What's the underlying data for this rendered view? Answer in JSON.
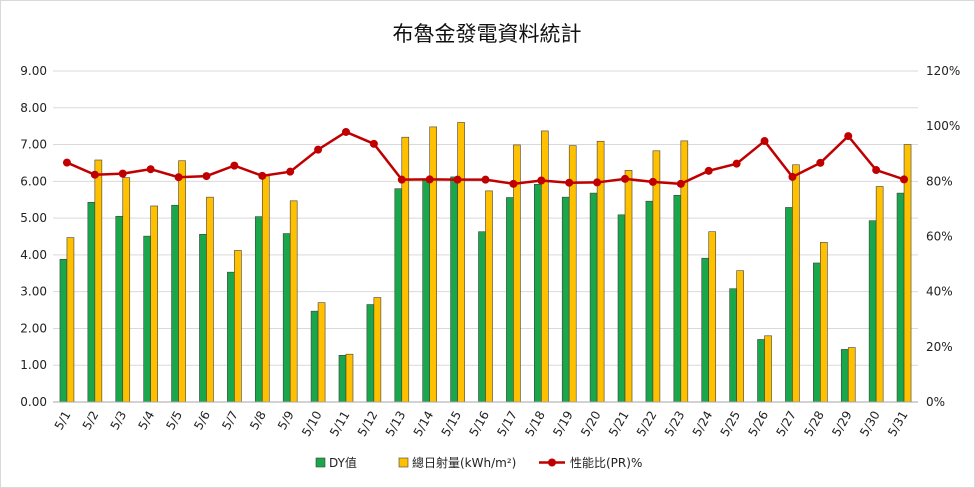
{
  "chart_data": {
    "type": "bar",
    "title": "布魯金發電資料統計",
    "categories": [
      "5/1",
      "5/2",
      "5/3",
      "5/4",
      "5/5",
      "5/6",
      "5/7",
      "5/8",
      "5/9",
      "5/10",
      "5/11",
      "5/12",
      "5/13",
      "5/14",
      "5/15",
      "5/16",
      "5/17",
      "5/18",
      "5/19",
      "5/20",
      "5/21",
      "5/22",
      "5/23",
      "5/24",
      "5/25",
      "5/26",
      "5/27",
      "5/28",
      "5/29",
      "5/30",
      "5/31"
    ],
    "y_ticks": [
      "0.00",
      "1.00",
      "2.00",
      "3.00",
      "4.00",
      "5.00",
      "6.00",
      "7.00",
      "8.00",
      "9.00"
    ],
    "y2_ticks": [
      "0%",
      "20%",
      "40%",
      "60%",
      "80%",
      "100%",
      "120%"
    ],
    "ylim": [
      0,
      9
    ],
    "y2lim": [
      0,
      120
    ],
    "grid": true,
    "legend_position": "bottom",
    "series": [
      {
        "name": "DY值",
        "type": "bar",
        "axis": "left",
        "color": "#1aa64a",
        "values": [
          3.88,
          5.43,
          5.05,
          4.51,
          5.35,
          4.56,
          3.53,
          5.04,
          4.58,
          2.47,
          1.27,
          2.65,
          5.8,
          6.05,
          6.12,
          4.63,
          5.56,
          5.92,
          5.57,
          5.68,
          5.09,
          5.46,
          5.62,
          3.91,
          3.08,
          1.7,
          5.29,
          3.78,
          1.43,
          4.93,
          5.68
        ]
      },
      {
        "name": "總日射量(kWh/m²)",
        "type": "bar",
        "axis": "left",
        "color": "#ffc000",
        "values": [
          4.47,
          6.58,
          6.1,
          5.33,
          6.56,
          5.57,
          4.12,
          6.15,
          5.47,
          2.7,
          1.3,
          2.84,
          7.2,
          7.48,
          7.6,
          5.74,
          6.99,
          7.37,
          6.97,
          7.09,
          6.3,
          6.83,
          7.1,
          4.63,
          3.57,
          1.8,
          6.45,
          4.34,
          1.48,
          5.86,
          7.0
        ]
      },
      {
        "name": "性能比(PR)%",
        "type": "line",
        "axis": "right",
        "color": "#c00000",
        "values": [
          86.8,
          82.4,
          82.8,
          84.4,
          81.5,
          81.9,
          85.7,
          82.0,
          83.5,
          91.5,
          97.9,
          93.6,
          80.6,
          80.7,
          80.6,
          80.6,
          79.1,
          80.3,
          79.5,
          79.6,
          80.9,
          79.8,
          79.1,
          83.8,
          86.4,
          94.6,
          81.6,
          86.7,
          96.4,
          84.1,
          80.7
        ]
      }
    ]
  }
}
